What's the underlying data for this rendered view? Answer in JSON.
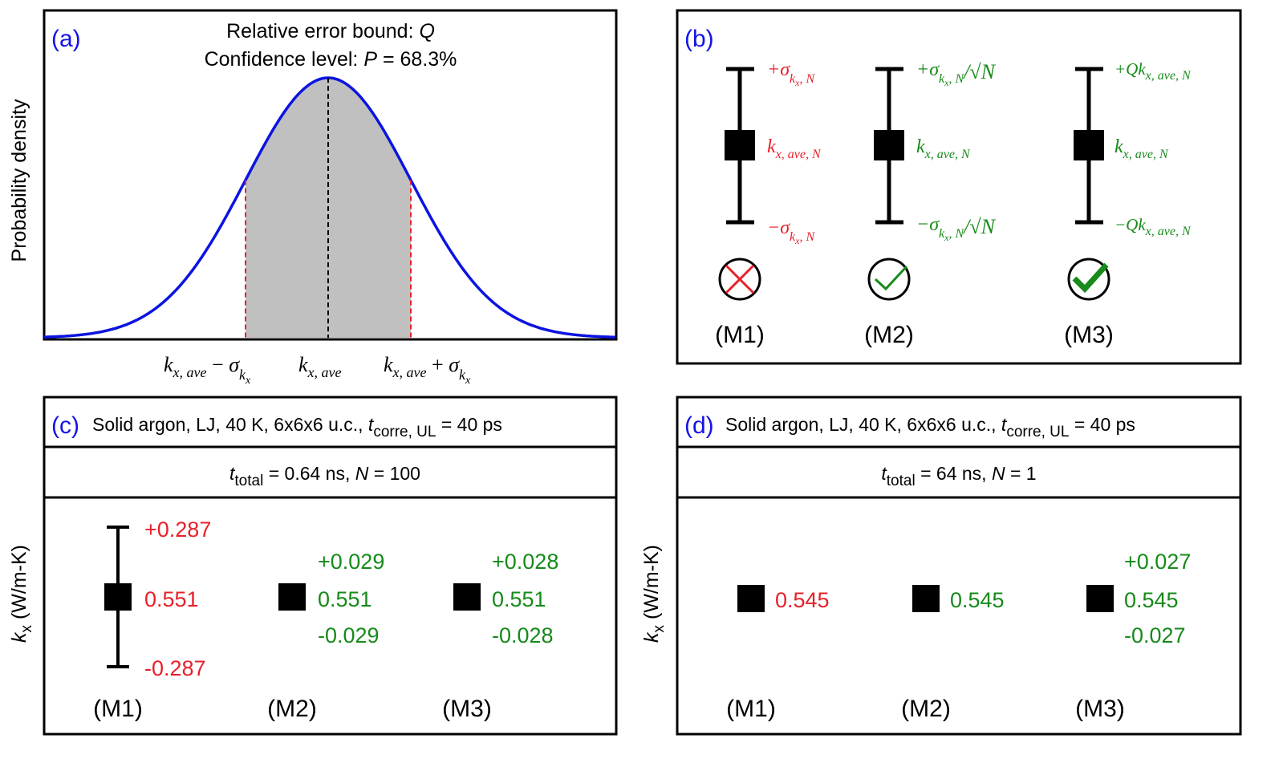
{
  "colors": {
    "curve": "#0b14e0",
    "red": "#e8202a",
    "green": "#168a1a",
    "blue": "#1414e6",
    "shade": "#c0c0c0"
  },
  "panel_a": {
    "tag": "(a)",
    "title1_pre": "Relative error bound: ",
    "title1_q": "Q",
    "title2_pre": "Confidence level: ",
    "title2_p": "P",
    "title2_post": " = 68.3%",
    "ylabel": "Probability density",
    "x_left": {
      "k": "k",
      "sub": "x, ave",
      "op": " − ",
      "sig": "σ",
      "sub2": "k",
      "sub3": "x"
    },
    "x_mid": {
      "k": "k",
      "sub": "x, ave"
    },
    "x_right": {
      "k": "k",
      "sub": "x, ave",
      "op": " + ",
      "sig": "σ",
      "sub2": "k",
      "sub3": "x"
    }
  },
  "panel_b": {
    "tag": "(b)",
    "m1": {
      "label": "(M1)",
      "upper": "+σ",
      "lower": "−σ",
      "sigsub": "k",
      "sigsub2": "x",
      "sigsub3": ", N",
      "mid_k": "k",
      "mid_sub": "x, ave, N",
      "status_icon": "cross-icon"
    },
    "m2": {
      "label": "(M2)",
      "upper": "+σ",
      "lower": "−σ",
      "sigsub": "k",
      "sigsub2": "x",
      "sigsub3": ", N",
      "div": "/√N",
      "mid_k": "k",
      "mid_sub": "x, ave, N",
      "status_icon": "check-icon"
    },
    "m3": {
      "label": "(M3)",
      "upper": "+Qk",
      "lower": "−Qk",
      "sub": "x, ave, N",
      "mid_k": "k",
      "mid_sub": "x, ave, N",
      "status_icon": "check-bold-icon"
    }
  },
  "panel_c": {
    "tag": "(c)",
    "header_pre": "Solid argon, LJ, 40 K, 6x6x6 u.c., ",
    "header_t": "t",
    "header_sub": "corre, UL",
    "header_post": " = 40 ps",
    "sub_t": "t",
    "sub_sub": "total",
    "sub_post": " = 0.64 ns, ",
    "sub_n": "N",
    "sub_post2": " = 100",
    "ylabel_k": "k",
    "ylabel_sub": "x",
    "ylabel_unit": " (W/m-K)",
    "m1": {
      "label": "(M1)",
      "mean": "0.551",
      "upper": "+0.287",
      "lower": "-0.287",
      "err": 0.287
    },
    "m2": {
      "label": "(M2)",
      "mean": "0.551",
      "upper": "+0.029",
      "lower": "-0.029",
      "err": 0.029
    },
    "m3": {
      "label": "(M3)",
      "mean": "0.551",
      "upper": "+0.028",
      "lower": "-0.028",
      "err": 0.028
    }
  },
  "panel_d": {
    "tag": "(d)",
    "header_pre": "Solid argon, LJ, 40 K, 6x6x6 u.c., ",
    "header_t": "t",
    "header_sub": "corre, UL",
    "header_post": " = 40 ps",
    "sub_t": "t",
    "sub_sub": "total",
    "sub_post": " = 64 ns, ",
    "sub_n": "N",
    "sub_post2": " = 1",
    "ylabel_k": "k",
    "ylabel_sub": "x",
    "ylabel_unit": " (W/m-K)",
    "m1": {
      "label": "(M1)",
      "mean": "0.545"
    },
    "m2": {
      "label": "(M2)",
      "mean": "0.545"
    },
    "m3": {
      "label": "(M3)",
      "mean": "0.545",
      "upper": "+0.027",
      "lower": "-0.027",
      "err": 0.027
    }
  }
}
